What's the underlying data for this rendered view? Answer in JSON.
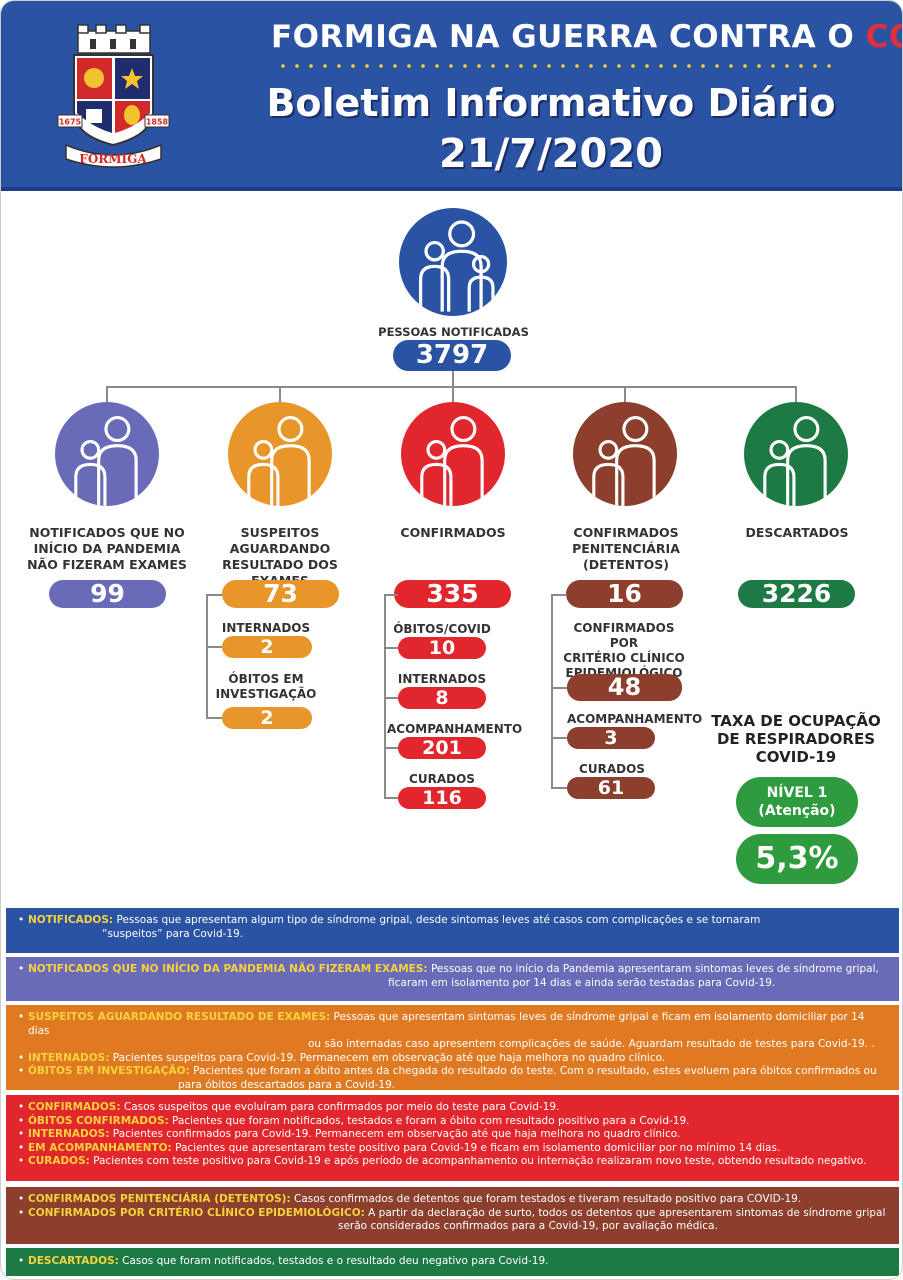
{
  "header": {
    "title_part1": "FORMIGA NA GUERRA CONTRA O ",
    "title_part2": "CORONAVÍRUS",
    "subtitle": "Boletim Informativo Diário",
    "date": "21/7/2020",
    "crest": {
      "year_left": "1675",
      "year_right": "1858",
      "banner": "FORMIGA"
    }
  },
  "colors": {
    "blue": "#2a53a4",
    "purple": "#6a6bb8",
    "orange": "#e8962a",
    "red": "#e2262d",
    "brown": "#8b3f2c",
    "green": "#1e7a44",
    "green_light": "#2e9b3e"
  },
  "notified": {
    "label": "PESSOAS NOTIFICADAS",
    "value": "3797"
  },
  "categories": [
    {
      "label_lines": [
        "NOTIFICADOS QUE NO",
        "INÍCIO DA PANDEMIA",
        "NÃO FIZERAM EXAMES"
      ],
      "value": "99"
    },
    {
      "label_lines": [
        "SUSPEITOS AGUARDANDO",
        "RESULTADO DOS EXAMES"
      ],
      "value": "73",
      "sub": [
        {
          "label_lines": [
            "INTERNADOS"
          ],
          "value": "2"
        },
        {
          "label_lines": [
            "ÓBITOS EM",
            "INVESTIGAÇÃO"
          ],
          "value": "2"
        }
      ]
    },
    {
      "label_lines": [
        "CONFIRMADOS"
      ],
      "value": "335",
      "sub": [
        {
          "label_lines": [
            "ÓBITOS/COVID"
          ],
          "value": "10"
        },
        {
          "label_lines": [
            "INTERNADOS"
          ],
          "value": "8"
        },
        {
          "label_lines": [
            "ACOMPANHAMENTO"
          ],
          "value": "201"
        },
        {
          "label_lines": [
            "CURADOS"
          ],
          "value": "116"
        }
      ]
    },
    {
      "label_lines": [
        "CONFIRMADOS",
        "PENITENCIÁRIA (DETENTOS)"
      ],
      "value": "16",
      "sub": [
        {
          "label_lines": [
            "CONFIRMADOS POR",
            "CRITÉRIO CLÍNICO",
            "EPIDEMIOLÓGICO"
          ],
          "value": "48"
        },
        {
          "label_lines": [
            "ACOMPANHAMENTO"
          ],
          "value": "3"
        },
        {
          "label_lines": [
            "CURADOS"
          ],
          "value": "61"
        }
      ]
    },
    {
      "label_lines": [
        "DESCARTADOS"
      ],
      "value": "3226"
    }
  ],
  "respirators": {
    "title_lines": [
      "TAXA DE OCUPAÇÃO",
      "DE RESPIRADORES",
      "COVID-19"
    ],
    "level": "NÍVEL 1",
    "level_note": "(Atenção)",
    "rate": "5,3%"
  },
  "legend": [
    {
      "rows": [
        {
          "key": "NOTIFICADOS:",
          "text": " Pessoas que apresentam algum tipo de síndrome gripal, desde sintomas leves até casos com complicações e se tornaram",
          "cont": "“suspeitos” para Covid-19."
        }
      ]
    },
    {
      "rows": [
        {
          "key": "NOTIFICADOS QUE NO INÍCIO DA PANDEMIA NÃO FIZERAM EXAMES:",
          "text": " Pessoas que no início da Pandemia apresentaram sintomas leves de síndrome gripal,",
          "cont": "ficaram em isolamento por 14 dias e ainda serão testadas para Covid-19."
        }
      ]
    },
    {
      "rows": [
        {
          "key": "SUSPEITOS AGUARDANDO RESULTADO DE EXAMES:",
          "text": " Pessoas que apresentam sintomas leves de síndrome gripal e ficam em isolamento domiciliar por 14 dias",
          "cont": "ou são internadas caso apresentem complicações de saúde. Aguardam resultado de testes para Covid-19. ."
        },
        {
          "key": "INTERNADOS:",
          "text": " Pacientes suspeitos para Covid-19. Permanecem em observação até que haja melhora no quadro clínico.",
          "cont": ""
        },
        {
          "key": "ÓBITOS EM INVESTIGAÇÃO:",
          "text": " Pacientes que foram a óbito antes da chegada do resultado do teste. Com o resultado, estes evoluem para óbitos confirmados ou",
          "cont": "para óbitos descartados para a Covid-19."
        }
      ]
    },
    {
      "rows": [
        {
          "key": "CONFIRMADOS:",
          "text": " Casos suspeitos que evoluíram para confirmados por meio do teste para Covid-19.",
          "cont": ""
        },
        {
          "key": "ÓBITOS CONFIRMADOS:",
          "text": " Pacientes que foram notificados, testados e foram a óbito com resultado positivo para a Covid-19.",
          "cont": ""
        },
        {
          "key": "INTERNADOS:",
          "text": " Pacientes confirmados para Covid-19. Permanecem em observação até que haja melhora no quadro clínico.",
          "cont": ""
        },
        {
          "key": "EM ACOMPANHAMENTO:",
          "text": " Pacientes que apresentaram teste positivo para Covid-19 e ficam em isolamento domiciliar por no mínimo 14 dias.",
          "cont": ""
        },
        {
          "key": "CURADOS:",
          "text": " Pacientes com teste positivo para Covid-19 e após período de acompanhamento ou internação realizaram novo teste, obtendo resultado negativo.",
          "cont": ""
        }
      ]
    },
    {
      "rows": [
        {
          "key": "CONFIRMADOS PENITENCIÁRIA (DETENTOS):",
          "text": " Casos confirmados de detentos que foram testados e tiveram resultado positivo para COVID-19.",
          "cont": ""
        },
        {
          "key": "CONFIRMADOS POR CRITÉRIO CLÍNICO EPIDEMIOLÓGICO:",
          "text": " A partir da declaração de surto, todos os detentos que apresentarem sintomas de síndrome gripal",
          "cont": "serão considerados confirmados para a Covid-19, por avaliação médica."
        }
      ]
    },
    {
      "rows": [
        {
          "key": "DESCARTADOS:",
          "text": " Casos que foram notificados, testados e o resultado deu negativo para Covid-19.",
          "cont": ""
        }
      ]
    }
  ]
}
